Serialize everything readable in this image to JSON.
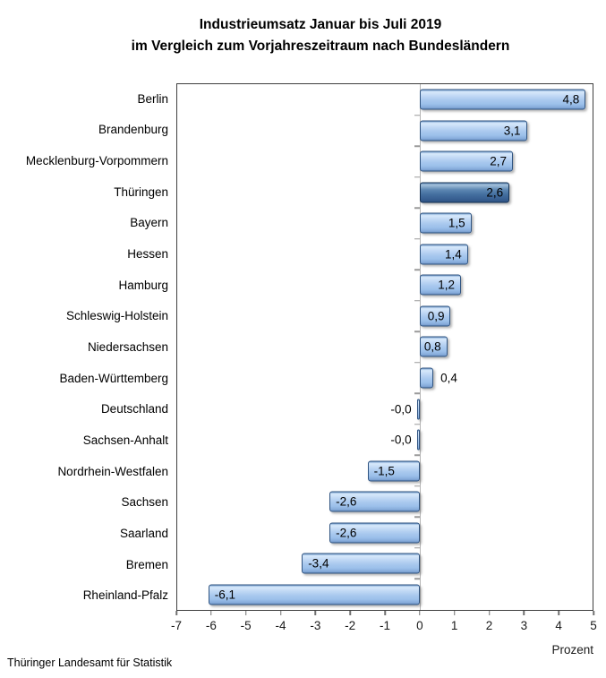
{
  "title": {
    "line1": "Industrieumsatz Januar bis Juli 2019",
    "line2": "im Vergleich zum Vorjahreszeitraum nach Bundesländern"
  },
  "footer": "Thüringer Landesamt für Statistik",
  "chart_data": {
    "type": "bar",
    "orientation": "horizontal",
    "title": "Industrieumsatz Januar bis Juli 2019 im Vergleich zum Vorjahreszeitraum nach Bundesländern",
    "categories": [
      "Berlin",
      "Brandenburg",
      "Mecklenburg-Vorpommern",
      "Thüringen",
      "Bayern",
      "Hessen",
      "Hamburg",
      "Schleswig-Holstein",
      "Niedersachsen",
      "Baden-Württemberg",
      "Deutschland",
      "Sachsen-Anhalt",
      "Nordrhein-Westfalen",
      "Sachsen",
      "Saarland",
      "Bremen",
      "Rheinland-Pfalz"
    ],
    "values": [
      4.8,
      3.1,
      2.7,
      2.6,
      1.5,
      1.4,
      1.2,
      0.9,
      0.8,
      0.4,
      -0.0,
      -0.0,
      -1.5,
      -2.6,
      -2.6,
      -3.4,
      -6.1
    ],
    "value_labels": [
      "4,8",
      "3,1",
      "2,7",
      "2,6",
      "1,5",
      "1,4",
      "1,2",
      "0,9",
      "0,8",
      "0,4",
      "-0,0",
      "-0,0",
      "-1,5",
      "-2,6",
      "-2,6",
      "-3,4",
      "-6,1"
    ],
    "highlight_index": 3,
    "highlight_category": "Thüringen",
    "xlabel": "Prozent",
    "xlim": [
      -7,
      5
    ],
    "x_ticks": [
      -7,
      -6,
      -5,
      -4,
      -3,
      -2,
      -1,
      0,
      1,
      2,
      3,
      4,
      5
    ],
    "grid": false,
    "legend": false,
    "colors": {
      "bar_fill": "#a8c8ee",
      "bar_border": "#305481",
      "bar_highlight_fill": "#446f9f",
      "bar_highlight_border": "#122f52",
      "zero_line": "#b5b5b5",
      "plot_border": "#3f3f3f",
      "text": "#000000"
    }
  }
}
